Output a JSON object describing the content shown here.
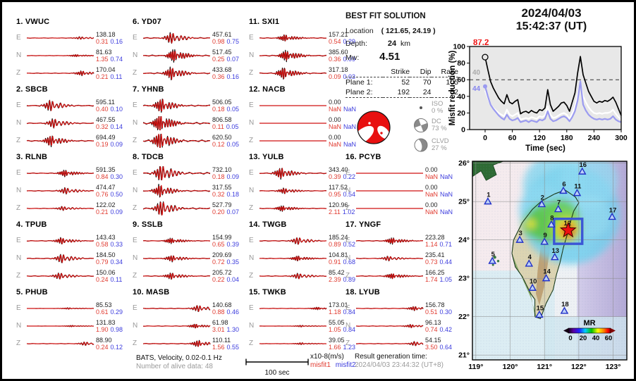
{
  "header": {
    "date": "2024/04/03",
    "time": "15:42:37  (UT)"
  },
  "solution": {
    "title": "BEST FIT SOLUTION",
    "location_label": "Location",
    "location_value": "( 121.65,  24.19 )",
    "depth_label": "Depth:",
    "depth_value": "24",
    "depth_unit": "km",
    "mw_label": "Mw:",
    "mw_value": "4.51",
    "table": {
      "cols": [
        "Strike",
        "Dip",
        "Rake"
      ],
      "rows": [
        {
          "label": "Plane 1:",
          "strike": "52",
          "dip": "70",
          "rake": "105"
        },
        {
          "label": "Plane 2:",
          "strike": "192",
          "dip": "24",
          "rake": "52"
        }
      ]
    },
    "decomposition": [
      {
        "name": "ISO",
        "pct": "0 %"
      },
      {
        "name": "DC",
        "pct": "73 %"
      },
      {
        "name": "CLVD",
        "pct": "27 %"
      }
    ]
  },
  "stations": [
    {
      "id": "1",
      "code": "VWUC",
      "channels": [
        {
          "ch": "E",
          "amp": "138.18",
          "m1": "0.31",
          "m2": "0.16",
          "w": 1.6,
          "p": 0.78
        },
        {
          "ch": "N",
          "amp": "81.63",
          "m1": "1.35",
          "m2": "0.74",
          "w": 1.4,
          "p": 0.72
        },
        {
          "ch": "Z",
          "amp": "170.04",
          "m1": "0.21",
          "m2": "0.11",
          "w": 3,
          "p": 0.8
        }
      ]
    },
    {
      "id": "2",
      "code": "SBCB",
      "channels": [
        {
          "ch": "E",
          "amp": "595.11",
          "m1": "0.40",
          "m2": "0.10",
          "w": 7,
          "p": 0.33
        },
        {
          "ch": "N",
          "amp": "467.55",
          "m1": "0.32",
          "m2": "0.14",
          "w": 6,
          "p": 0.38
        },
        {
          "ch": "Z",
          "amp": "694.49",
          "m1": "0.19",
          "m2": "0.09",
          "w": 7,
          "p": 0.34
        }
      ]
    },
    {
      "id": "3",
      "code": "RLNB",
      "channels": [
        {
          "ch": "E",
          "amp": "591.35",
          "m1": "0.84",
          "m2": "0.30",
          "w": 4,
          "p": 0.55
        },
        {
          "ch": "N",
          "amp": "474.47",
          "m1": "0.76",
          "m2": "0.50",
          "w": 4,
          "p": 0.56
        },
        {
          "ch": "Z",
          "amp": "122.02",
          "m1": "0.21",
          "m2": "0.09",
          "w": 2.5,
          "p": 0.52
        }
      ]
    },
    {
      "id": "4",
      "code": "TPUB",
      "channels": [
        {
          "ch": "E",
          "amp": "143.43",
          "m1": "0.58",
          "m2": "0.33",
          "w": 4,
          "p": 0.5
        },
        {
          "ch": "N",
          "amp": "184.50",
          "m1": "0.79",
          "m2": "0.34",
          "w": 5.5,
          "p": 0.5
        },
        {
          "ch": "Z",
          "amp": "150.06",
          "m1": "0.24",
          "m2": "0.11",
          "w": 4,
          "p": 0.47
        }
      ]
    },
    {
      "id": "5",
      "code": "PHUB",
      "channels": [
        {
          "ch": "E",
          "amp": "85.53",
          "m1": "0.61",
          "m2": "0.29",
          "w": 0.9,
          "p": 0.6
        },
        {
          "ch": "N",
          "amp": "131.83",
          "m1": "1.90",
          "m2": "0.98",
          "w": 0.9,
          "p": 0.65
        },
        {
          "ch": "Z",
          "amp": "88.90",
          "m1": "0.24",
          "m2": "0.12",
          "w": 2.2,
          "p": 0.85
        }
      ]
    },
    {
      "id": "6",
      "code": "YD07",
      "channels": [
        {
          "ch": "E",
          "amp": "457.61",
          "m1": "0.98",
          "m2": "0.75",
          "w": 7,
          "p": 0.4
        },
        {
          "ch": "N",
          "amp": "517.45",
          "m1": "0.25",
          "m2": "0.07",
          "w": 8,
          "p": 0.44
        },
        {
          "ch": "Z",
          "amp": "433.68",
          "m1": "0.36",
          "m2": "0.16",
          "w": 8,
          "p": 0.4
        }
      ]
    },
    {
      "id": "7",
      "code": "YHNB",
      "channels": [
        {
          "ch": "E",
          "amp": "506.05",
          "m1": "0.18",
          "m2": "0.05",
          "w": 9,
          "p": 0.25
        },
        {
          "ch": "N",
          "amp": "806.58",
          "m1": "0.11",
          "m2": "0.05",
          "w": 12,
          "p": 0.23
        },
        {
          "ch": "Z",
          "amp": "620.50",
          "m1": "0.12",
          "m2": "0.05",
          "w": 12,
          "p": 0.23
        }
      ]
    },
    {
      "id": "8",
      "code": "TDCB",
      "channels": [
        {
          "ch": "E",
          "amp": "732.10",
          "m1": "0.18",
          "m2": "0.09",
          "w": 12,
          "p": 0.25
        },
        {
          "ch": "N",
          "amp": "317.55",
          "m1": "0.32",
          "m2": "0.18",
          "w": 8,
          "p": 0.23
        },
        {
          "ch": "Z",
          "amp": "527.79",
          "m1": "0.20",
          "m2": "0.07",
          "w": 10,
          "p": 0.25
        }
      ]
    },
    {
      "id": "9",
      "code": "SSLB",
      "channels": [
        {
          "ch": "E",
          "amp": "154.99",
          "m1": "0.65",
          "m2": "0.39",
          "w": 3.5,
          "p": 0.4
        },
        {
          "ch": "N",
          "amp": "209.69",
          "m1": "0.72",
          "m2": "0.35",
          "w": 4,
          "p": 0.41
        },
        {
          "ch": "Z",
          "amp": "205.72",
          "m1": "0.22",
          "m2": "0.04",
          "w": 4,
          "p": 0.4
        }
      ]
    },
    {
      "id": "10",
      "code": "MASB",
      "channels": [
        {
          "ch": "E",
          "amp": "140.68",
          "m1": "0.88",
          "m2": "0.46",
          "w": 4,
          "p": 0.8
        },
        {
          "ch": "N",
          "amp": "61.98",
          "m1": "3.01",
          "m2": "1.30",
          "w": 2.5,
          "p": 0.76
        },
        {
          "ch": "Z",
          "amp": "110.11",
          "m1": "1.56",
          "m2": "0.55",
          "w": 4,
          "p": 0.8
        }
      ]
    },
    {
      "id": "11",
      "code": "SXI1",
      "channels": [
        {
          "ch": "E",
          "amp": "157.21",
          "m1": "0.54",
          "m2": "0.29",
          "w": 4,
          "p": 0.36
        },
        {
          "ch": "N",
          "amp": "385.60",
          "m1": "0.36",
          "m2": "0.09",
          "w": 7,
          "p": 0.38
        },
        {
          "ch": "Z",
          "amp": "317.18",
          "m1": "0.09",
          "m2": "0.03",
          "w": 7,
          "p": 0.34
        }
      ]
    },
    {
      "id": "12",
      "code": "NACB",
      "channels": [
        {
          "ch": "E",
          "amp": "0.00",
          "m1": "NaN",
          "m2": "NaN",
          "w": 0,
          "p": 0.5
        },
        {
          "ch": "N",
          "amp": "0.00",
          "m1": "NaN",
          "m2": "NaN",
          "w": 0,
          "p": 0.5
        },
        {
          "ch": "Z",
          "amp": "0.00",
          "m1": "NaN",
          "m2": "NaN",
          "w": 0,
          "p": 0.5
        }
      ]
    },
    {
      "id": "13",
      "code": "YULB",
      "channels": [
        {
          "ch": "E",
          "amp": "343.40",
          "m1": "0.39",
          "m2": "0.22",
          "w": 7,
          "p": 0.3
        },
        {
          "ch": "N",
          "amp": "117.52",
          "m1": "0.95",
          "m2": "0.54",
          "w": 3.5,
          "p": 0.35
        },
        {
          "ch": "Z",
          "amp": "120.96",
          "m1": "2.11",
          "m2": "1.02",
          "w": 3.5,
          "p": 0.32
        }
      ]
    },
    {
      "id": "14",
      "code": "TWGB",
      "channels": [
        {
          "ch": "E",
          "amp": "185.24",
          "m1": "0.89",
          "m2": "0.52",
          "w": 4.5,
          "p": 0.55
        },
        {
          "ch": "N",
          "amp": "104.81",
          "m1": "0.91",
          "m2": "0.68",
          "w": 3,
          "p": 0.55
        },
        {
          "ch": "Z",
          "amp": "85.42",
          "m1": "2.39",
          "m2": "0.89",
          "w": 3.5,
          "p": 0.56
        }
      ]
    },
    {
      "id": "15",
      "code": "TWKB",
      "channels": [
        {
          "ch": "E",
          "amp": "173.01",
          "m1": "1.18",
          "m2": "0.84",
          "w": 1.6,
          "p": 0.85
        },
        {
          "ch": "N",
          "amp": "55.05",
          "m1": "1.05",
          "m2": "0.84",
          "w": 1,
          "p": 0.6
        },
        {
          "ch": "Z",
          "amp": "39.05",
          "m1": "1.66",
          "m2": "1.23",
          "w": 1.2,
          "p": 0.6
        }
      ]
    },
    {
      "id": "16",
      "code": "PCYB",
      "channels": [
        {
          "ch": "E",
          "amp": "0.00",
          "m1": "NaN",
          "m2": "NaN",
          "w": 0,
          "p": 0.5
        },
        {
          "ch": "N",
          "amp": "0.00",
          "m1": "NaN",
          "m2": "NaN",
          "w": 0,
          "p": 0.5
        },
        {
          "ch": "Z",
          "amp": "0.00",
          "m1": "NaN",
          "m2": "NaN",
          "w": 0,
          "p": 0.5
        }
      ]
    },
    {
      "id": "17",
      "code": "YNGF",
      "channels": [
        {
          "ch": "E",
          "amp": "223.28",
          "m1": "1.14",
          "m2": "0.71",
          "w": 4,
          "p": 0.52
        },
        {
          "ch": "N",
          "amp": "235.41",
          "m1": "0.73",
          "m2": "0.44",
          "w": 3,
          "p": 0.46
        },
        {
          "ch": "Z",
          "amp": "166.25",
          "m1": "1.74",
          "m2": "1.05",
          "w": 3.5,
          "p": 0.52
        }
      ]
    },
    {
      "id": "18",
      "code": "LYUB",
      "channels": [
        {
          "ch": "E",
          "amp": "156.78",
          "m1": "0.51",
          "m2": "0.30",
          "w": 2.6,
          "p": 0.85
        },
        {
          "ch": "N",
          "amp": "96.13",
          "m1": "0.74",
          "m2": "0.42",
          "w": 2,
          "p": 0.8
        },
        {
          "ch": "Z",
          "amp": "54.15",
          "m1": "3.50",
          "m2": "0.64",
          "w": 2.6,
          "p": 0.86
        }
      ]
    }
  ],
  "chart_data": [
    {
      "type": "line",
      "title": "Misfit reduction vs time",
      "xlabel": "Time (sec)",
      "ylabel": "Misfit reduction (%)",
      "xlim": [
        0,
        300
      ],
      "ylim": [
        0,
        100
      ],
      "xticks": [
        0,
        60,
        120,
        180,
        240,
        300
      ],
      "yticks": [
        0,
        20,
        40,
        60,
        80,
        100
      ],
      "dashed_y": 60,
      "t_step": 6,
      "legend_position": "none",
      "series": [
        {
          "name": "misfit-black",
          "color": "#000000",
          "width": 1.7,
          "start_marker": "open-circle",
          "values": [
            87.2,
            72,
            58,
            50,
            44,
            38,
            34,
            31,
            42,
            33,
            31,
            34,
            36,
            19,
            21,
            22,
            20,
            23,
            21,
            20,
            24,
            23,
            26,
            48,
            30,
            22,
            25,
            28,
            32,
            33,
            29,
            22,
            33,
            44,
            68,
            88,
            66,
            56,
            46,
            40,
            34,
            32,
            34,
            33,
            35,
            34,
            36,
            39,
            33,
            25,
            17
          ]
        },
        {
          "name": "misfit-white",
          "color": "#ffffff",
          "width": 2.2,
          "start_marker": "none",
          "values": [
            47,
            38,
            30,
            26,
            23,
            20,
            18,
            16,
            24,
            18,
            16,
            18,
            20,
            12,
            13,
            14,
            13,
            15,
            14,
            13,
            16,
            15,
            17,
            28,
            18,
            14,
            15,
            17,
            19,
            20,
            18,
            13,
            19,
            28,
            42,
            56,
            40,
            33,
            27,
            23,
            20,
            19,
            20,
            19,
            20,
            20,
            21,
            24,
            19,
            15,
            12
          ]
        },
        {
          "name": "misfit-blue",
          "color": "#9b9bf0",
          "width": 2.2,
          "start_marker": "dot",
          "values": [
            52,
            40,
            30,
            25,
            21,
            17,
            14,
            12,
            18,
            13,
            11,
            12,
            14,
            9,
            10,
            11,
            9,
            11,
            10,
            9,
            12,
            11,
            13,
            22,
            13,
            10,
            11,
            13,
            15,
            16,
            14,
            10,
            15,
            22,
            35,
            58,
            30,
            23,
            18,
            15,
            13,
            12,
            13,
            12,
            13,
            12,
            13,
            16,
            12,
            10,
            9
          ]
        }
      ],
      "annotations": [
        {
          "text": "87.2",
          "color": "#ee1111"
        },
        {
          "text": "40",
          "color": "#aaaaaa"
        },
        {
          "text": "44",
          "color": "#8585ee"
        }
      ]
    },
    {
      "type": "map",
      "lon_ticks": [
        "119°",
        "120°",
        "121°",
        "122°",
        "123°"
      ],
      "lat_ticks": [
        "26°",
        "25°",
        "24°",
        "23°",
        "22°",
        "21°"
      ],
      "lon_tick_vals": [
        119,
        120,
        121,
        122,
        123
      ],
      "lat_tick_vals": [
        26,
        25,
        24,
        23,
        22,
        21
      ],
      "epicenter": {
        "label": "12",
        "lon": 121.69,
        "lat": 24.25
      },
      "source_box": {
        "lon0": 121.28,
        "lat0": 23.9,
        "lon1": 122.1,
        "lat1": 24.55
      },
      "station_markers": [
        {
          "id": "1",
          "lon": 119.35,
          "lat": 25.0
        },
        {
          "id": "2",
          "lon": 120.92,
          "lat": 24.93
        },
        {
          "id": "3",
          "lon": 120.28,
          "lat": 24.0
        },
        {
          "id": "4",
          "lon": 120.55,
          "lat": 23.38
        },
        {
          "id": "5",
          "lon": 119.48,
          "lat": 23.45
        },
        {
          "id": "6",
          "lon": 121.55,
          "lat": 25.28
        },
        {
          "id": "7",
          "lon": 121.4,
          "lat": 24.8
        },
        {
          "id": "8",
          "lon": 121.2,
          "lat": 24.4
        },
        {
          "id": "9",
          "lon": 121.0,
          "lat": 23.95
        },
        {
          "id": "10",
          "lon": 120.65,
          "lat": 22.75
        },
        {
          "id": "11",
          "lon": 121.95,
          "lat": 25.22
        },
        {
          "id": "13",
          "lon": 121.3,
          "lat": 23.55
        },
        {
          "id": "14",
          "lon": 121.05,
          "lat": 23.0
        },
        {
          "id": "15",
          "lon": 120.85,
          "lat": 22.05
        },
        {
          "id": "16",
          "lon": 122.1,
          "lat": 25.78
        },
        {
          "id": "17",
          "lon": 122.97,
          "lat": 24.6
        },
        {
          "id": "18",
          "lon": 121.58,
          "lat": 22.15
        }
      ],
      "colorbar": {
        "label": "MR",
        "ticks": [
          "0",
          "20",
          "40",
          "60"
        ]
      },
      "heat": [
        [
          121.75,
          24.65,
          70,
          "#74cfec",
          0.85
        ],
        [
          121.3,
          25.4,
          45,
          "#82d6ef",
          0.8
        ],
        [
          122.3,
          25.55,
          40,
          "#8fdaf1",
          0.75
        ],
        [
          120.95,
          24.8,
          34,
          "#8fdaf1",
          0.7
        ],
        [
          121.8,
          23.9,
          28,
          "#82d6ef",
          0.65
        ],
        [
          122.3,
          24.6,
          30,
          "#9adef2",
          0.6
        ],
        [
          121.05,
          24.45,
          28,
          "#59c44c",
          0.85
        ],
        [
          121.45,
          24.55,
          28,
          "#65cc52",
          0.85
        ],
        [
          120.72,
          24.4,
          18,
          "#59c44c",
          0.8
        ],
        [
          120.6,
          24.42,
          7,
          "#ece335",
          0.9
        ],
        [
          121.6,
          24.32,
          24,
          "#8ed54a",
          0.9
        ],
        [
          121.65,
          24.27,
          15,
          "#f0e436",
          0.95
        ],
        [
          121.68,
          24.25,
          11,
          "#f5921e",
          0.95
        ],
        [
          121.69,
          24.24,
          8,
          "#e92d0b",
          1
        ],
        [
          121.7,
          24.23,
          4.5,
          "#8f1402",
          1
        ]
      ]
    }
  ],
  "footer": {
    "bats": "BATS, Velocity, 0.02-0.1 Hz",
    "alive": "Number of alive data: 48",
    "scale_label": "100 sec",
    "units": "x10-8(m/s)",
    "misfit1": "misfit1",
    "misfit2": "misfit2",
    "result_label": "Result generation time:",
    "result_time": "2024/04/03 23:44:32 (UT+8)"
  }
}
